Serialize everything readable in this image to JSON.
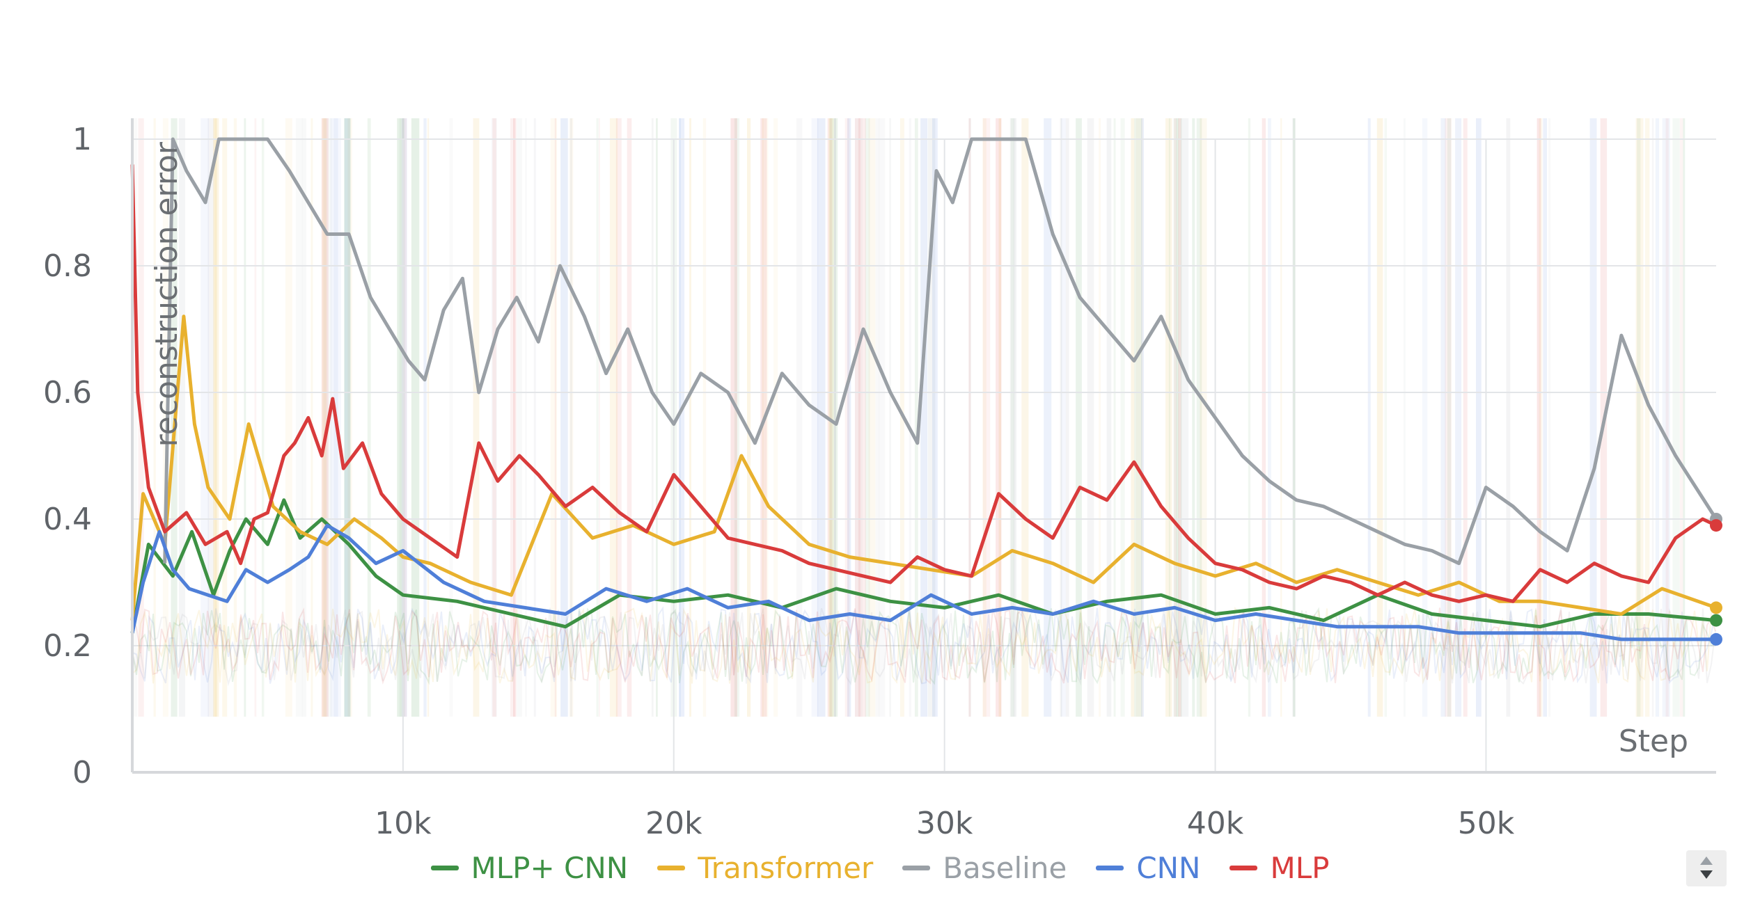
{
  "chart_data": {
    "type": "line",
    "title": "",
    "xlabel": "Step",
    "ylabel": "reconstruction error",
    "xlim": [
      0,
      58500
    ],
    "ylim": [
      0,
      1
    ],
    "x_ticks": [
      {
        "value": 10000,
        "label": "10k"
      },
      {
        "value": 20000,
        "label": "20k"
      },
      {
        "value": 30000,
        "label": "30k"
      },
      {
        "value": 40000,
        "label": "40k"
      },
      {
        "value": 50000,
        "label": "50k"
      }
    ],
    "y_ticks": [
      {
        "value": 0,
        "label": "0"
      },
      {
        "value": 0.2,
        "label": "0.2"
      },
      {
        "value": 0.4,
        "label": "0.4"
      },
      {
        "value": 0.6,
        "label": "0.6"
      },
      {
        "value": 0.8,
        "label": "0.8"
      },
      {
        "value": 1,
        "label": "1"
      }
    ],
    "grid": true,
    "legend_position": "bottom",
    "series": [
      {
        "name": "MLP+ CNN",
        "color": "#3d9144",
        "x": [
          0,
          600,
          1500,
          2200,
          3000,
          3600,
          4200,
          5000,
          5600,
          6200,
          7000,
          8000,
          9000,
          10000,
          12000,
          14000,
          16000,
          18000,
          20000,
          22000,
          24000,
          26000,
          28000,
          30000,
          32000,
          34000,
          36000,
          38000,
          40000,
          42000,
          44000,
          46000,
          48000,
          50000,
          52000,
          54000,
          56000,
          58500
        ],
        "y": [
          0.22,
          0.36,
          0.31,
          0.38,
          0.28,
          0.35,
          0.4,
          0.36,
          0.43,
          0.37,
          0.4,
          0.36,
          0.31,
          0.28,
          0.27,
          0.25,
          0.23,
          0.28,
          0.27,
          0.28,
          0.26,
          0.29,
          0.27,
          0.26,
          0.28,
          0.25,
          0.27,
          0.28,
          0.25,
          0.26,
          0.24,
          0.28,
          0.25,
          0.24,
          0.23,
          0.25,
          0.25,
          0.24
        ]
      },
      {
        "name": "Transformer",
        "color": "#e8b12e",
        "x": [
          0,
          400,
          1200,
          1900,
          2300,
          2800,
          3600,
          4300,
          5200,
          6200,
          7200,
          8200,
          9200,
          10000,
          11000,
          12500,
          14000,
          15500,
          17000,
          18500,
          20000,
          21500,
          22500,
          23500,
          25000,
          26500,
          28000,
          29500,
          31000,
          32500,
          34000,
          35500,
          37000,
          38500,
          40000,
          41500,
          43000,
          44500,
          46000,
          47500,
          49000,
          50500,
          52000,
          53500,
          55000,
          56500,
          58500
        ],
        "y": [
          0.24,
          0.44,
          0.36,
          0.72,
          0.55,
          0.45,
          0.4,
          0.55,
          0.42,
          0.38,
          0.36,
          0.4,
          0.37,
          0.34,
          0.33,
          0.3,
          0.28,
          0.44,
          0.37,
          0.39,
          0.36,
          0.38,
          0.5,
          0.42,
          0.36,
          0.34,
          0.33,
          0.32,
          0.31,
          0.35,
          0.33,
          0.3,
          0.36,
          0.33,
          0.31,
          0.33,
          0.3,
          0.32,
          0.3,
          0.28,
          0.3,
          0.27,
          0.27,
          0.26,
          0.25,
          0.29,
          0.26
        ]
      },
      {
        "name": "Baseline",
        "color": "#9aa0a6",
        "x": [
          1200,
          1500,
          2000,
          2700,
          3200,
          3700,
          4200,
          5000,
          5800,
          6500,
          7200,
          8000,
          8800,
          9500,
          10200,
          10800,
          11500,
          12200,
          12800,
          13500,
          14200,
          15000,
          15800,
          16700,
          17500,
          18300,
          19200,
          20000,
          21000,
          22000,
          23000,
          24000,
          25000,
          26000,
          27000,
          28000,
          29000,
          29700,
          30300,
          31000,
          32000,
          33000,
          34000,
          35000,
          36000,
          37000,
          38000,
          39000,
          40000,
          41000,
          42000,
          43000,
          44000,
          45000,
          46000,
          47000,
          48000,
          49000,
          50000,
          51000,
          52000,
          53000,
          54000,
          55000,
          56000,
          57000,
          58500
        ],
        "y": [
          0.33,
          1.0,
          0.95,
          0.9,
          1.0,
          1.0,
          1.0,
          1.0,
          0.95,
          0.9,
          0.85,
          0.85,
          0.75,
          0.7,
          0.65,
          0.62,
          0.73,
          0.78,
          0.6,
          0.7,
          0.75,
          0.68,
          0.8,
          0.72,
          0.63,
          0.7,
          0.6,
          0.55,
          0.63,
          0.6,
          0.52,
          0.63,
          0.58,
          0.55,
          0.7,
          0.6,
          0.52,
          0.95,
          0.9,
          1.0,
          1.0,
          1.0,
          0.85,
          0.75,
          0.7,
          0.65,
          0.72,
          0.62,
          0.56,
          0.5,
          0.46,
          0.43,
          0.42,
          0.4,
          0.38,
          0.36,
          0.35,
          0.33,
          0.45,
          0.42,
          0.38,
          0.35,
          0.48,
          0.69,
          0.58,
          0.5,
          0.4
        ]
      },
      {
        "name": "CNN",
        "color": "#4f7fd8",
        "x": [
          0,
          400,
          1000,
          1500,
          2100,
          2800,
          3500,
          4200,
          5000,
          5800,
          6500,
          7200,
          8000,
          9000,
          10000,
          11500,
          13000,
          14500,
          16000,
          17500,
          19000,
          20500,
          22000,
          23500,
          25000,
          26500,
          28000,
          29500,
          31000,
          32500,
          34000,
          35500,
          37000,
          38500,
          40000,
          41500,
          43000,
          44500,
          46000,
          47500,
          49000,
          50500,
          52000,
          53500,
          55000,
          56500,
          58500
        ],
        "y": [
          0.22,
          0.3,
          0.38,
          0.32,
          0.29,
          0.28,
          0.27,
          0.32,
          0.3,
          0.32,
          0.34,
          0.39,
          0.37,
          0.33,
          0.35,
          0.3,
          0.27,
          0.26,
          0.25,
          0.29,
          0.27,
          0.29,
          0.26,
          0.27,
          0.24,
          0.25,
          0.24,
          0.28,
          0.25,
          0.26,
          0.25,
          0.27,
          0.25,
          0.26,
          0.24,
          0.25,
          0.24,
          0.23,
          0.23,
          0.23,
          0.22,
          0.22,
          0.22,
          0.22,
          0.21,
          0.21,
          0.21
        ]
      },
      {
        "name": "MLP",
        "color": "#d93b3b",
        "x": [
          0,
          200,
          600,
          1200,
          2000,
          2700,
          3500,
          4000,
          4500,
          5000,
          5600,
          6000,
          6500,
          7000,
          7400,
          7800,
          8500,
          9200,
          10000,
          11000,
          12000,
          12800,
          13500,
          14300,
          15000,
          16000,
          17000,
          18000,
          19000,
          20000,
          21000,
          22000,
          23000,
          24000,
          25000,
          26000,
          27000,
          28000,
          29000,
          30000,
          31000,
          32000,
          33000,
          34000,
          35000,
          36000,
          37000,
          38000,
          39000,
          40000,
          41000,
          42000,
          43000,
          44000,
          45000,
          46000,
          47000,
          48000,
          49000,
          50000,
          51000,
          52000,
          53000,
          54000,
          55000,
          56000,
          57000,
          58000,
          58500
        ],
        "y": [
          0.96,
          0.6,
          0.45,
          0.38,
          0.41,
          0.36,
          0.38,
          0.33,
          0.4,
          0.41,
          0.5,
          0.52,
          0.56,
          0.5,
          0.59,
          0.48,
          0.52,
          0.44,
          0.4,
          0.37,
          0.34,
          0.52,
          0.46,
          0.5,
          0.47,
          0.42,
          0.45,
          0.41,
          0.38,
          0.47,
          0.42,
          0.37,
          0.36,
          0.35,
          0.33,
          0.32,
          0.31,
          0.3,
          0.34,
          0.32,
          0.31,
          0.44,
          0.4,
          0.37,
          0.45,
          0.43,
          0.49,
          0.42,
          0.37,
          0.33,
          0.32,
          0.3,
          0.29,
          0.31,
          0.3,
          0.28,
          0.3,
          0.28,
          0.27,
          0.28,
          0.27,
          0.32,
          0.3,
          0.33,
          0.31,
          0.3,
          0.37,
          0.4,
          0.39
        ]
      }
    ]
  },
  "ui": {
    "scroll_button_up_icon": "triangle-up-icon",
    "scroll_button_down_icon": "triangle-down-icon"
  }
}
